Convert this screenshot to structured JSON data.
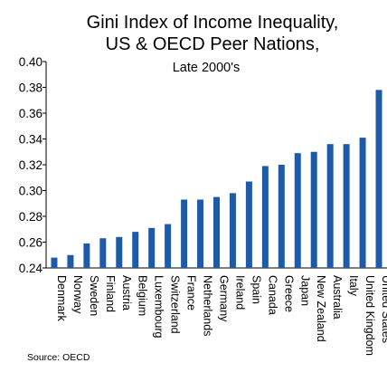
{
  "chart_data": {
    "type": "bar",
    "title_lines": [
      "Gini Index of Income Inequality,",
      "US & OECD Peer Nations,"
    ],
    "subtitle": "Late 2000's",
    "xlabel": "",
    "ylabel": "",
    "ylim": [
      0.24,
      0.4
    ],
    "yticks": [
      "0.24",
      "0.26",
      "0.28",
      "0.30",
      "0.32",
      "0.34",
      "0.36",
      "0.38",
      "0.40"
    ],
    "grid": false,
    "categories": [
      "Denmark",
      "Norway",
      "Sweden",
      "Finland",
      "Austria",
      "Belgium",
      "Luxembourg",
      "Switzerland",
      "France",
      "Netherlands",
      "Germany",
      "Ireland",
      "Spain",
      "Canada",
      "Greece",
      "Japan",
      "New Zealand",
      "Australia",
      "Italy",
      "United Kingdom",
      "United States"
    ],
    "values": [
      0.248,
      0.25,
      0.259,
      0.263,
      0.264,
      0.268,
      0.271,
      0.274,
      0.293,
      0.293,
      0.295,
      0.298,
      0.307,
      0.319,
      0.32,
      0.329,
      0.33,
      0.336,
      0.336,
      0.341,
      0.378
    ],
    "bar_color": "#1f5aa6",
    "source": "Source: OECD"
  }
}
